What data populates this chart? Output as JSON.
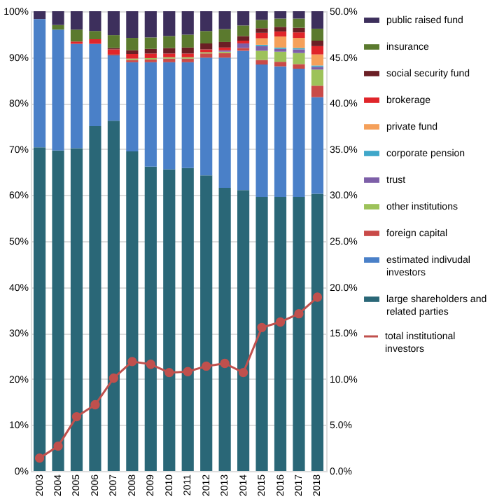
{
  "chart_data": {
    "type": "bar",
    "stacked": true,
    "categories": [
      "2003",
      "2004",
      "2005",
      "2006",
      "2007",
      "2008",
      "2009",
      "2010",
      "2011",
      "2012",
      "2013",
      "2014",
      "2015",
      "2016",
      "2017",
      "2018"
    ],
    "ylim": [
      0,
      100
    ],
    "yticks": [
      {
        "value": 0,
        "label": "0%"
      },
      {
        "value": 10,
        "label": "10%"
      },
      {
        "value": 20,
        "label": "20%"
      },
      {
        "value": 30,
        "label": "30%"
      },
      {
        "value": 40,
        "label": "40%"
      },
      {
        "value": 50,
        "label": "50%"
      },
      {
        "value": 60,
        "label": "60%"
      },
      {
        "value": 70,
        "label": "70%"
      },
      {
        "value": 80,
        "label": "80%"
      },
      {
        "value": 90,
        "label": "90%"
      },
      {
        "value": 100,
        "label": "100%"
      }
    ],
    "y2lim": [
      0,
      50
    ],
    "y2ticks": [
      {
        "value": 0,
        "label": "0.0%"
      },
      {
        "value": 5,
        "label": "5.0%"
      },
      {
        "value": 10,
        "label": "10.0%"
      },
      {
        "value": 15,
        "label": "15.0%"
      },
      {
        "value": 20,
        "label": "20.0%"
      },
      {
        "value": 25,
        "label": "25.0%"
      },
      {
        "value": 30,
        "label": "30.0%"
      },
      {
        "value": 35,
        "label": "35.0%"
      },
      {
        "value": 40,
        "label": "40.0%"
      },
      {
        "value": 45,
        "label": "45.0%"
      },
      {
        "value": 50,
        "label": "50.0%"
      }
    ],
    "grid": "y",
    "legend": "right",
    "series": [
      {
        "name": "large shareholders and related parties",
        "color": "#2a6777",
        "values": [
          70.4,
          69.7,
          70.2,
          75.0,
          76.2,
          69.5,
          66.2,
          65.6,
          65.9,
          64.3,
          61.6,
          61.1,
          59.6,
          59.6,
          59.6,
          60.3
        ]
      },
      {
        "name": "estimated indivudal investors",
        "color": "#4a80c8",
        "values": [
          27.9,
          26.3,
          22.7,
          17.9,
          14.2,
          19.4,
          22.7,
          23.3,
          23.0,
          25.6,
          28.3,
          30.3,
          28.8,
          28.4,
          27.9,
          21.0
        ]
      },
      {
        "name": "foreign capital",
        "color": "#c94a48",
        "values": [
          0,
          0,
          0,
          0,
          0.3,
          0.5,
          0.6,
          0.8,
          0.8,
          0.9,
          1.0,
          0.6,
          1.0,
          1.0,
          1.0,
          2.5
        ]
      },
      {
        "name": "other institutions",
        "color": "#9dc25a",
        "values": [
          0,
          0,
          0,
          0,
          0,
          0.3,
          0.3,
          0.3,
          0.3,
          0.3,
          0.3,
          0,
          2.0,
          2.2,
          2.4,
          3.5
        ]
      },
      {
        "name": "trust",
        "color": "#7d5fa8",
        "values": [
          0,
          0,
          0,
          0,
          0,
          0,
          0,
          0,
          0,
          0,
          0.3,
          1.0,
          1.0,
          0.6,
          0.8,
          0.6
        ]
      },
      {
        "name": "corporate pension",
        "color": "#3fa7c9",
        "values": [
          0,
          0,
          0,
          0,
          0,
          0,
          0,
          0,
          0,
          0,
          0,
          0,
          0.3,
          0.3,
          0.3,
          0.3
        ]
      },
      {
        "name": "private fund",
        "color": "#f5a05a",
        "values": [
          0,
          0,
          0,
          0,
          0,
          0,
          0,
          0,
          0,
          0,
          0,
          0,
          1.4,
          2.4,
          2.2,
          2.4
        ]
      },
      {
        "name": "brokerage",
        "color": "#e0252a",
        "values": [
          0,
          0,
          0.5,
          1.0,
          1.0,
          1.0,
          1.0,
          0.8,
          0.8,
          0.6,
          0.6,
          0.6,
          1.2,
          1.1,
          1.2,
          1.8
        ]
      },
      {
        "name": "social security fund",
        "color": "#6b1f25",
        "values": [
          0,
          0,
          0,
          0,
          0.3,
          0.8,
          1.0,
          1.2,
          1.3,
          1.3,
          1.2,
          1.0,
          1.0,
          1.0,
          1.0,
          1.2
        ]
      },
      {
        "name": "insurance",
        "color": "#5b7a2e",
        "values": [
          0,
          1.0,
          2.6,
          1.8,
          2.8,
          2.7,
          2.5,
          2.6,
          2.8,
          2.7,
          2.8,
          2.3,
          1.8,
          1.8,
          2.0,
          2.6
        ]
      },
      {
        "name": "public raised fund",
        "color": "#3d2f5c",
        "values": [
          1.7,
          3.0,
          4.0,
          4.3,
          5.2,
          5.8,
          5.7,
          5.4,
          5.1,
          4.3,
          3.9,
          3.1,
          1.9,
          1.6,
          1.6,
          3.8
        ]
      },
      {
        "name": "total institutional investors",
        "color": "#c0504d",
        "type": "line",
        "axis": "y2",
        "marker": "circle",
        "values": [
          1.4,
          2.7,
          5.9,
          7.2,
          10.1,
          11.9,
          11.6,
          10.7,
          10.8,
          11.4,
          11.7,
          10.7,
          15.6,
          16.2,
          17.1,
          18.9
        ]
      }
    ]
  }
}
